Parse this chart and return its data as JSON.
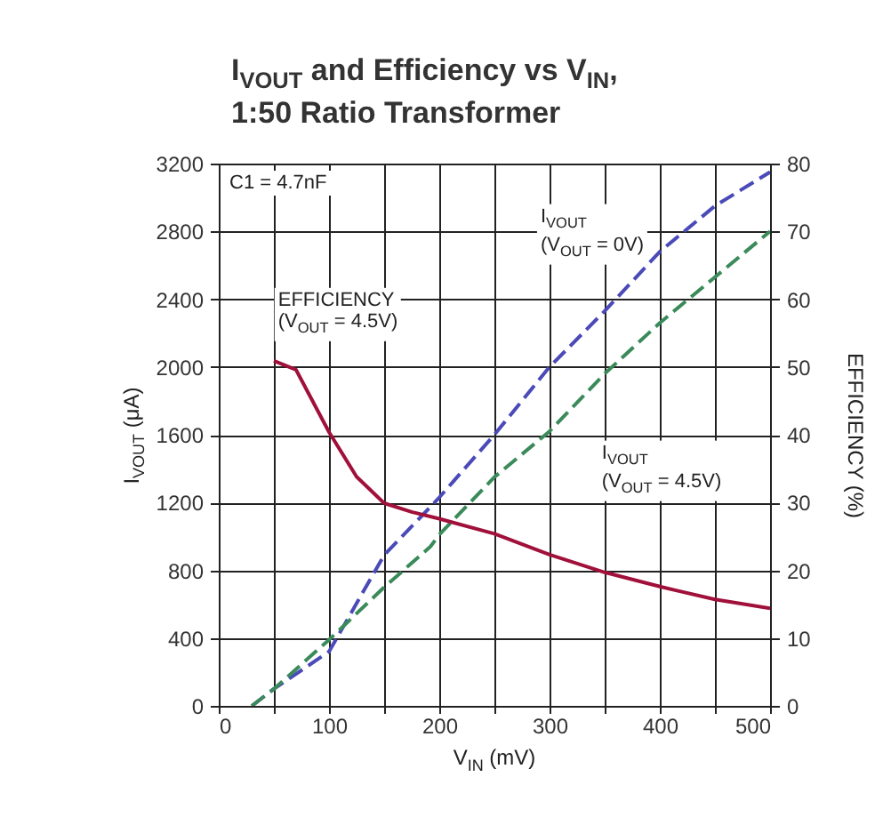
{
  "chart_data": {
    "type": "line",
    "title": "I$_{VOUT}$ and Efficiency vs V$_{IN}$,\n1:50 Ratio Transformer",
    "xlabel": "V$_{IN}$ (mV)",
    "ylabel": "I$_{VOUT}$ (μA)",
    "y2label": "EFFICIENCY (%)",
    "xlim": [
      0,
      500
    ],
    "xticks": [
      0,
      {
        "value": 50,
        "label": null
      },
      100,
      {
        "value": 150,
        "label": null
      },
      200,
      {
        "value": 250,
        "label": null
      },
      300,
      {
        "value": 350,
        "label": null
      },
      400,
      {
        "value": 450,
        "label": null
      },
      500
    ],
    "ylim": [
      0,
      3200
    ],
    "yticks": [
      0,
      400,
      800,
      1200,
      1600,
      2000,
      2400,
      2800,
      3200
    ],
    "y2lim": [
      0,
      80
    ],
    "y2ticks": [
      0,
      10,
      20,
      30,
      40,
      50,
      60,
      70,
      80
    ],
    "grid": true,
    "series": [
      {
        "color": "#4a4ab8",
        "line_style": "dashed",
        "x": [
          30,
          50,
          100,
          150,
          184,
          200,
          250,
          300,
          350,
          400,
          450,
          500
        ],
        "values": [
          0,
          100,
          320,
          890,
          1120,
          1230,
          1600,
          2000,
          2330,
          2680,
          2950,
          3150
        ]
      },
      {
        "color": "#3a8a5a",
        "line_style": "dashed",
        "x": [
          30,
          50,
          100,
          150,
          192,
          200,
          250,
          300,
          350,
          400,
          450,
          500
        ],
        "values": [
          0,
          100,
          390,
          700,
          940,
          1010,
          1350,
          1620,
          1960,
          2260,
          2530,
          2800
        ]
      },
      {
        "color": "#a0103a",
        "line_style": "solid",
        "axis": "y2",
        "x": [
          50,
          70,
          100,
          125,
          150,
          175,
          200,
          250,
          300,
          350,
          400,
          450,
          500
        ],
        "values": [
          50.9,
          49.6,
          40.4,
          33.8,
          29.9,
          28.6,
          27.6,
          25.4,
          22.3,
          19.7,
          17.6,
          15.7,
          14.4
        ]
      }
    ],
    "annotations": [
      "C1 = 4.7nF",
      "I$_{VOUT}$\n(V$_{OUT}$ = 0V)",
      "EFFICIENCY\n(V$_{OUT}$ = 4.5V)",
      "I$_{VOUT}$\n(V$_{OUT}$ = 4.5V)"
    ]
  }
}
